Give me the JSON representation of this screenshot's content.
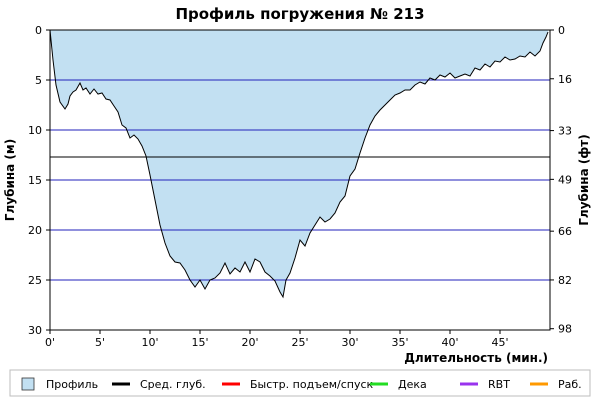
{
  "chart_data": {
    "type": "area",
    "title": "Профиль погружения № 213",
    "xlabel": "Длительность (мин.)",
    "ylabel_left": "Глубина (м)",
    "ylabel_right": "Глубина (фт)",
    "xlim": [
      0,
      50
    ],
    "ylim": [
      0,
      30
    ],
    "y_inverted": true,
    "x_ticks": [
      0,
      5,
      10,
      15,
      20,
      25,
      30,
      35,
      40,
      45
    ],
    "x_tick_labels": [
      "0'",
      "5'",
      "10'",
      "15'",
      "20'",
      "25'",
      "30'",
      "35'",
      "40'",
      "45'"
    ],
    "y_ticks_left": [
      0,
      5,
      10,
      15,
      20,
      25,
      30
    ],
    "y_tick_labels_left": [
      "0",
      "5",
      "10",
      "15",
      "20",
      "25",
      "30"
    ],
    "y_ticks_right_ft": [
      0,
      16,
      33,
      49,
      66,
      82,
      98
    ],
    "y_tick_labels_right": [
      "0",
      "16",
      "33",
      "49",
      "66",
      "82",
      "98"
    ],
    "grid": "horizontal",
    "avg_depth_m": 12.7,
    "profile": {
      "x": [
        0,
        0.3,
        0.6,
        1.0,
        1.5,
        1.8,
        2.0,
        2.3,
        2.6,
        3.0,
        3.3,
        3.6,
        4.0,
        4.4,
        4.8,
        5.2,
        5.6,
        6.0,
        6.4,
        6.8,
        7.2,
        7.6,
        8.0,
        8.4,
        8.8,
        9.2,
        9.6,
        10.0,
        10.5,
        11.0,
        11.5,
        12.0,
        12.5,
        13.0,
        13.5,
        14.0,
        14.5,
        15.0,
        15.5,
        16.0,
        16.5,
        17.0,
        17.5,
        18.0,
        18.5,
        19.0,
        19.5,
        20.0,
        20.5,
        21.0,
        21.5,
        22.0,
        22.5,
        23.0,
        23.3,
        23.6,
        24.0,
        24.5,
        25.0,
        25.5,
        26.0,
        26.5,
        27.0,
        27.5,
        28.0,
        28.5,
        29.0,
        29.5,
        30.0,
        30.5,
        31.0,
        31.5,
        32.0,
        32.5,
        33.0,
        33.5,
        34.0,
        34.5,
        35.0,
        35.5,
        36.0,
        36.5,
        37.0,
        37.5,
        38.0,
        38.5,
        39.0,
        39.5,
        40.0,
        40.5,
        41.0,
        41.5,
        42.0,
        42.5,
        43.0,
        43.5,
        44.0,
        44.5,
        45.0,
        45.5,
        46.0,
        46.5,
        47.0,
        47.5,
        48.0,
        48.5,
        49.0,
        49.3,
        49.6,
        49.8
      ],
      "y": [
        0,
        3.0,
        5.5,
        7.2,
        7.9,
        7.4,
        6.6,
        6.2,
        6.0,
        5.3,
        6.0,
        5.8,
        6.4,
        5.9,
        6.4,
        6.3,
        6.9,
        7.0,
        7.6,
        8.2,
        9.5,
        9.8,
        10.8,
        10.5,
        10.9,
        11.6,
        12.6,
        14.5,
        17.0,
        19.5,
        21.3,
        22.6,
        23.2,
        23.3,
        24.0,
        25.0,
        25.7,
        25.0,
        25.9,
        25.0,
        24.8,
        24.3,
        23.3,
        24.4,
        23.8,
        24.2,
        23.2,
        24.2,
        22.9,
        23.2,
        24.2,
        24.6,
        25.1,
        26.2,
        26.7,
        25.0,
        24.3,
        22.8,
        21.0,
        21.6,
        20.3,
        19.5,
        18.7,
        19.2,
        18.9,
        18.3,
        17.2,
        16.6,
        14.6,
        13.9,
        12.3,
        10.8,
        9.5,
        8.6,
        8.0,
        7.5,
        7.0,
        6.5,
        6.3,
        6.0,
        6.0,
        5.5,
        5.2,
        5.4,
        4.8,
        5.0,
        4.5,
        4.7,
        4.3,
        4.8,
        4.6,
        4.4,
        4.6,
        3.8,
        4.0,
        3.4,
        3.7,
        3.1,
        3.2,
        2.7,
        3.0,
        2.9,
        2.6,
        2.7,
        2.2,
        2.6,
        2.1,
        1.3,
        0.7,
        0.2
      ]
    },
    "legend": {
      "position": "bottom",
      "entries": [
        {
          "label": "Профиль",
          "kind": "box",
          "color": "#c2e0f2"
        },
        {
          "label": "Сред. глуб.",
          "kind": "line",
          "color": "#000000"
        },
        {
          "label": "Быстр. подъем/спуск",
          "kind": "line",
          "color": "#ff0000"
        },
        {
          "label": "Дека",
          "kind": "line",
          "color": "#22dd22"
        },
        {
          "label": "RBT",
          "kind": "line",
          "color": "#9933ee"
        },
        {
          "label": "Раб.",
          "kind": "line",
          "color": "#ff9900"
        }
      ]
    },
    "colors": {
      "fill": "#c2e0f2",
      "profile_line": "#000000",
      "grid": "#2222bb",
      "avg": "#000000"
    }
  }
}
